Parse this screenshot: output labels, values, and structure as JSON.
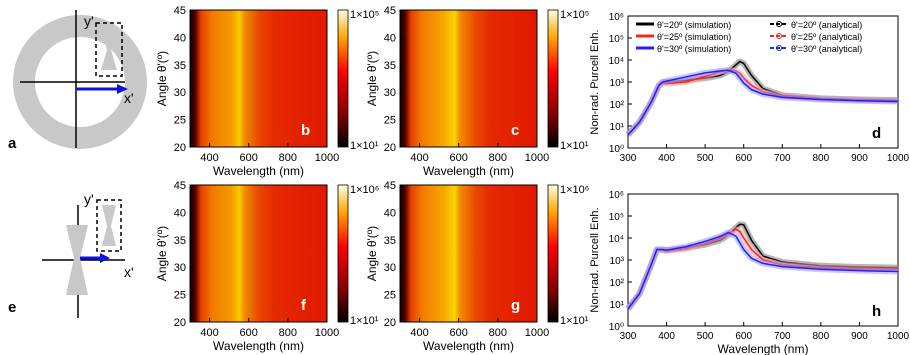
{
  "figure": {
    "panel_labels": [
      "a",
      "b",
      "c",
      "d",
      "e",
      "f",
      "g",
      "h"
    ],
    "colors": {
      "heat_low": "#1a0000",
      "heat_mid": "#e00000",
      "heat_high": "#ffd000",
      "sim_20": "#000000",
      "sim_25": "#ff0000",
      "sim_30": "#0000ff",
      "ana_20": "#555555",
      "ana_25": "#ff8080",
      "ana_30": "#8080ff"
    },
    "schematics": {
      "axis_x": "x'",
      "axis_y": "y'"
    }
  },
  "chart_data": [
    {
      "panel": "b",
      "type": "heatmap",
      "xlabel": "Wavelength (nm)",
      "ylabel": "Angle θ'(º)",
      "xticks": [
        "400",
        "600",
        "800",
        "1000"
      ],
      "yticks": [
        "20",
        "25",
        "30",
        "35",
        "40",
        "45"
      ],
      "xlim": [
        300,
        1000
      ],
      "ylim": [
        20,
        45
      ],
      "colorbar": {
        "max": "1×10⁵",
        "min": "1×10¹"
      }
    },
    {
      "panel": "c",
      "type": "heatmap",
      "xlabel": "Wavelength (nm)",
      "ylabel": "Angle θ'(º)",
      "xticks": [
        "400",
        "600",
        "800",
        "1000"
      ],
      "yticks": [
        "20",
        "25",
        "30",
        "35",
        "40",
        "45"
      ],
      "xlim": [
        300,
        1000
      ],
      "ylim": [
        20,
        45
      ],
      "colorbar": {
        "max": "1×10⁵",
        "min": "1×10¹"
      }
    },
    {
      "panel": "d",
      "type": "line",
      "ylabel": "Non-rad. Purcell Enh.",
      "xlabel": "",
      "xlim": [
        300,
        1000
      ],
      "ylog": true,
      "xticks": [
        "300",
        "400",
        "500",
        "600",
        "700",
        "800",
        "900",
        "1000"
      ],
      "yticks": [
        "10⁰",
        "10¹",
        "10²",
        "10³",
        "10⁴",
        "10⁵",
        "10⁶"
      ],
      "legend": [
        "θ'=20º  (simulation)",
        "θ'=20º  (analytical)",
        "θ'=25º  (simulation)",
        "θ'=25º  (analytical)",
        "θ'=30º  (simulation)",
        "θ'=30º  (analytical)"
      ],
      "x": [
        300,
        330,
        360,
        380,
        390,
        400,
        450,
        500,
        540,
        560,
        580,
        590,
        600,
        620,
        650,
        700,
        800,
        900,
        1000
      ],
      "series": [
        {
          "name": "θ'=20º  (simulation)",
          "values": [
            4,
            15,
            120,
            700,
            1000,
            1000,
            1200,
            1500,
            2000,
            3000,
            6000,
            8500,
            7000,
            2000,
            500,
            250,
            180,
            160,
            150
          ]
        },
        {
          "name": "θ'=25º  (simulation)",
          "values": [
            4,
            15,
            120,
            700,
            900,
            850,
            1000,
            1800,
            3000,
            3500,
            3200,
            2500,
            1500,
            700,
            350,
            230,
            170,
            150,
            140
          ]
        },
        {
          "name": "θ'=30º  (simulation)",
          "values": [
            4,
            15,
            120,
            700,
            1000,
            1100,
            1700,
            2600,
            3200,
            3400,
            2500,
            1500,
            900,
            450,
            280,
            200,
            160,
            140,
            130
          ]
        },
        {
          "name": "θ'=20º  (analytical)",
          "values": [
            4,
            15,
            120,
            700,
            1000,
            1000,
            1200,
            1500,
            2000,
            3000,
            6000,
            8500,
            7000,
            2000,
            500,
            250,
            180,
            160,
            150
          ]
        },
        {
          "name": "θ'=25º  (analytical)",
          "values": [
            4,
            15,
            120,
            700,
            900,
            850,
            1000,
            1800,
            3000,
            3500,
            3200,
            2500,
            1500,
            700,
            350,
            230,
            170,
            150,
            140
          ]
        },
        {
          "name": "θ'=30º  (analytical)",
          "values": [
            4,
            15,
            120,
            700,
            1000,
            1100,
            1700,
            2600,
            3200,
            3400,
            2500,
            1500,
            900,
            450,
            280,
            200,
            160,
            140,
            130
          ]
        }
      ]
    },
    {
      "panel": "f",
      "type": "heatmap",
      "xlabel": "Wavelength (nm)",
      "ylabel": "Angle θ'(º)",
      "xticks": [
        "400",
        "600",
        "800",
        "1000"
      ],
      "yticks": [
        "20",
        "25",
        "30",
        "35",
        "40",
        "45"
      ],
      "xlim": [
        300,
        1000
      ],
      "ylim": [
        20,
        45
      ],
      "colorbar": {
        "max": "1×10⁶",
        "min": "1×10¹"
      }
    },
    {
      "panel": "g",
      "type": "heatmap",
      "xlabel": "Wavelength (nm)",
      "ylabel": "Angle θ'(º)",
      "xticks": [
        "400",
        "600",
        "800",
        "1000"
      ],
      "yticks": [
        "20",
        "25",
        "30",
        "35",
        "40",
        "45"
      ],
      "xlim": [
        300,
        1000
      ],
      "ylim": [
        20,
        45
      ],
      "colorbar": {
        "max": "1×10⁶",
        "min": "1×10¹"
      }
    },
    {
      "panel": "h",
      "type": "line",
      "ylabel": "Non-rad. Purcell Enh.",
      "xlabel": "Wavelength (nm)",
      "xlim": [
        300,
        1000
      ],
      "ylog": true,
      "xticks": [
        "300",
        "400",
        "500",
        "600",
        "700",
        "800",
        "900",
        "1000"
      ],
      "yticks": [
        "10⁰",
        "10¹",
        "10²",
        "10³",
        "10⁴",
        "10⁵",
        "10⁶"
      ],
      "x": [
        300,
        330,
        360,
        375,
        390,
        400,
        450,
        500,
        540,
        560,
        580,
        590,
        600,
        620,
        650,
        700,
        800,
        900,
        1000
      ],
      "series": [
        {
          "name": "θ'=20º",
          "values": [
            6,
            30,
            600,
            3000,
            3000,
            2800,
            3500,
            5000,
            8000,
            14000,
            30000,
            42000,
            40000,
            8000,
            1500,
            800,
            550,
            480,
            450
          ]
        },
        {
          "name": "θ'=25º",
          "values": [
            6,
            30,
            600,
            3000,
            2800,
            2600,
            3300,
            5500,
            10000,
            16000,
            25000,
            20000,
            10000,
            3000,
            1000,
            600,
            450,
            400,
            380
          ]
        },
        {
          "name": "θ'=30º",
          "values": [
            6,
            30,
            600,
            3000,
            3000,
            2800,
            4000,
            7000,
            12000,
            18000,
            12000,
            6000,
            3000,
            1200,
            700,
            500,
            380,
            330,
            300
          ]
        }
      ]
    }
  ]
}
